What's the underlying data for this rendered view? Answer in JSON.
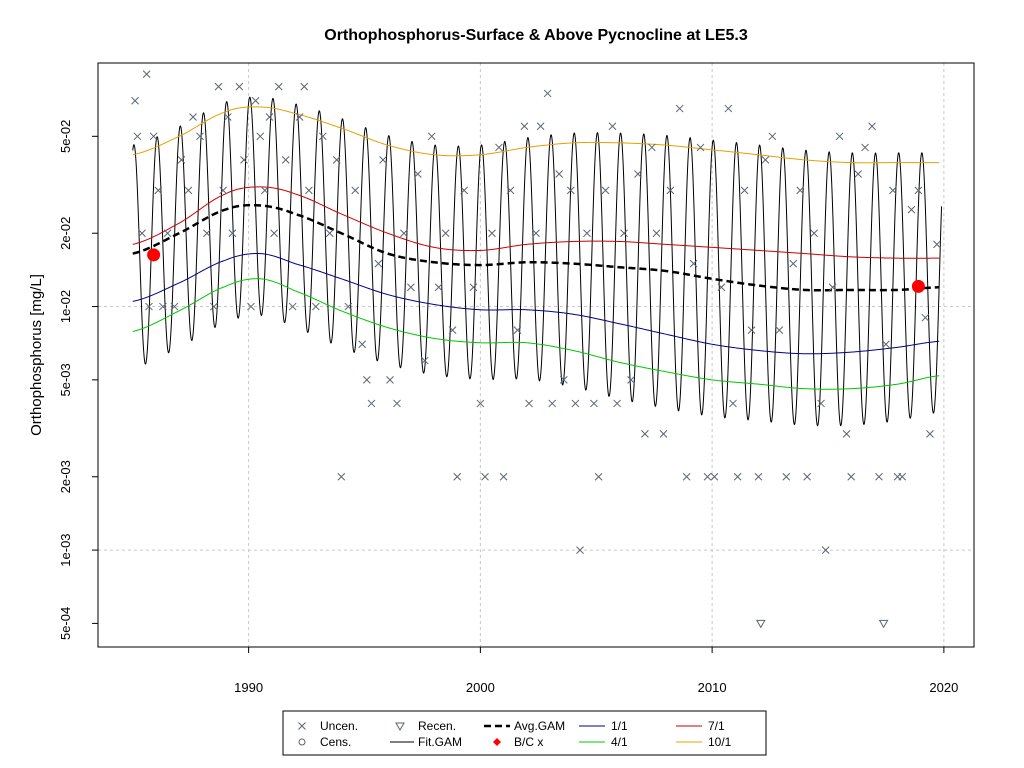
{
  "chart_data": {
    "type": "line",
    "title": "Orthophosphorus-Surface & Above Pycnocline at LE5.3",
    "ylabel": "Orthophosphorus [mg/L]",
    "xlabel": "",
    "y_scale": "log",
    "xlim": [
      1983.5,
      2021.3
    ],
    "ylim": [
      0.0004,
      0.1
    ],
    "grid": true,
    "x_ticks": [
      1990,
      2000,
      2010,
      2020
    ],
    "x_tick_labels": [
      "1990",
      "2000",
      "2010",
      "2020"
    ],
    "y_ticks": [
      0.0005,
      0.001,
      0.002,
      0.005,
      0.01,
      0.02,
      0.05
    ],
    "y_tick_labels": [
      "5e-04",
      "1e-03",
      "2e-03",
      "5e-03",
      "1e-02",
      "2e-02",
      "5e-02"
    ],
    "x_grid": [
      1990,
      2000,
      2010,
      2020
    ],
    "y_grid": [
      0.001,
      0.01
    ],
    "colors": {
      "uncensored": "#5a6473",
      "fit_gam": "#000000",
      "avg_gam": "#000000",
      "bc": "#ff0000",
      "jan": "#00008b",
      "apr": "#00c800",
      "jul": "#cc0000",
      "oct": "#e6a000",
      "grid": "#c8c8c8"
    },
    "fit_gam": {
      "name": "Fit.GAM",
      "x_start": 1985.0,
      "x_end": 2019.9,
      "phase_peak": 0.05,
      "phase_trough": 0.45
    },
    "series": [
      {
        "key": "oct",
        "name": "10/1",
        "x": [
          1985,
          1987,
          1989,
          1990.5,
          1992,
          1994,
          1996,
          1998,
          2000,
          2002,
          2004,
          2006,
          2008,
          2010,
          2012,
          2014,
          2016,
          2018,
          2019.8
        ],
        "values": [
          0.042,
          0.05,
          0.063,
          0.066,
          0.062,
          0.054,
          0.046,
          0.042,
          0.042,
          0.045,
          0.047,
          0.047,
          0.046,
          0.044,
          0.042,
          0.04,
          0.039,
          0.039,
          0.039
        ]
      },
      {
        "key": "jul",
        "name": "7/1",
        "x": [
          1985,
          1987,
          1989,
          1990.5,
          1992,
          1994,
          1996,
          1998,
          2000,
          2002,
          2004,
          2006,
          2008,
          2010,
          2012,
          2014,
          2016,
          2018,
          2019.8
        ],
        "values": [
          0.018,
          0.022,
          0.029,
          0.031,
          0.029,
          0.024,
          0.02,
          0.0175,
          0.017,
          0.018,
          0.0185,
          0.0185,
          0.018,
          0.0175,
          0.017,
          0.0165,
          0.016,
          0.0158,
          0.0158
        ]
      },
      {
        "key": "jan",
        "name": "1/1",
        "x": [
          1985,
          1987,
          1989,
          1990.5,
          1992,
          1994,
          1996,
          1998,
          2000,
          2002,
          2004,
          2006,
          2008,
          2010,
          2012,
          2014,
          2016,
          2018,
          2019.8
        ],
        "values": [
          0.0105,
          0.0125,
          0.0155,
          0.0165,
          0.015,
          0.013,
          0.0112,
          0.0102,
          0.0097,
          0.0097,
          0.0093,
          0.0085,
          0.0077,
          0.007,
          0.0066,
          0.0064,
          0.0065,
          0.0068,
          0.0072
        ]
      },
      {
        "key": "apr",
        "name": "4/1",
        "x": [
          1985,
          1987,
          1989,
          1990.5,
          1992,
          1994,
          1996,
          1998,
          2000,
          2002,
          2004,
          2006,
          2008,
          2010,
          2012,
          2014,
          2016,
          2018,
          2019.8
        ],
        "values": [
          0.0079,
          0.0096,
          0.0121,
          0.013,
          0.0116,
          0.0096,
          0.0082,
          0.0074,
          0.0071,
          0.0071,
          0.0066,
          0.0059,
          0.0054,
          0.005,
          0.0048,
          0.0046,
          0.0046,
          0.0048,
          0.0052
        ]
      },
      {
        "key": "avg",
        "name": "Avg.GAM",
        "x": [
          1985,
          1987,
          1989,
          1990.5,
          1992,
          1994,
          1996,
          1998,
          2000,
          2002,
          2004,
          2006,
          2008,
          2010,
          2012,
          2014,
          2016,
          2018,
          2019.8
        ],
        "values": [
          0.0165,
          0.02,
          0.025,
          0.026,
          0.024,
          0.02,
          0.0165,
          0.0152,
          0.0148,
          0.0152,
          0.015,
          0.0145,
          0.014,
          0.013,
          0.0122,
          0.0117,
          0.0117,
          0.0117,
          0.012
        ]
      }
    ],
    "bc_points": {
      "name": "B/C x",
      "points": [
        {
          "x": 1985.9,
          "y": 0.0163
        },
        {
          "x": 2018.9,
          "y": 0.0121
        }
      ]
    },
    "uncensored": {
      "name": "Uncen.",
      "points": [
        {
          "x": 1985.1,
          "y": 0.07
        },
        {
          "x": 1985.2,
          "y": 0.05
        },
        {
          "x": 1985.4,
          "y": 0.02
        },
        {
          "x": 1985.6,
          "y": 0.09
        },
        {
          "x": 1985.7,
          "y": 0.01
        },
        {
          "x": 1985.9,
          "y": 0.05
        },
        {
          "x": 1986.1,
          "y": 0.03
        },
        {
          "x": 1986.3,
          "y": 0.01
        },
        {
          "x": 1986.5,
          "y": 0.02
        },
        {
          "x": 1986.8,
          "y": 0.01
        },
        {
          "x": 1987.1,
          "y": 0.04
        },
        {
          "x": 1987.4,
          "y": 0.03
        },
        {
          "x": 1987.6,
          "y": 0.06
        },
        {
          "x": 1987.9,
          "y": 0.05
        },
        {
          "x": 1988.2,
          "y": 0.02
        },
        {
          "x": 1988.5,
          "y": 0.01
        },
        {
          "x": 1988.7,
          "y": 0.08
        },
        {
          "x": 1988.9,
          "y": 0.03
        },
        {
          "x": 1989.1,
          "y": 0.06
        },
        {
          "x": 1989.3,
          "y": 0.02
        },
        {
          "x": 1989.6,
          "y": 0.08
        },
        {
          "x": 1989.8,
          "y": 0.04
        },
        {
          "x": 1990.1,
          "y": 0.01
        },
        {
          "x": 1990.3,
          "y": 0.07
        },
        {
          "x": 1990.5,
          "y": 0.05
        },
        {
          "x": 1990.7,
          "y": 0.03
        },
        {
          "x": 1990.9,
          "y": 0.06
        },
        {
          "x": 1991.1,
          "y": 0.02
        },
        {
          "x": 1991.3,
          "y": 0.08
        },
        {
          "x": 1991.6,
          "y": 0.04
        },
        {
          "x": 1991.9,
          "y": 0.01
        },
        {
          "x": 1992.2,
          "y": 0.06
        },
        {
          "x": 1992.4,
          "y": 0.08
        },
        {
          "x": 1992.6,
          "y": 0.03
        },
        {
          "x": 1992.9,
          "y": 0.01
        },
        {
          "x": 1993.2,
          "y": 0.05
        },
        {
          "x": 1993.5,
          "y": 0.02
        },
        {
          "x": 1993.8,
          "y": 0.04
        },
        {
          "x": 1994.0,
          "y": 0.002
        },
        {
          "x": 1994.3,
          "y": 0.01
        },
        {
          "x": 1994.6,
          "y": 0.03
        },
        {
          "x": 1994.9,
          "y": 0.007
        },
        {
          "x": 1995.1,
          "y": 0.005
        },
        {
          "x": 1995.3,
          "y": 0.004
        },
        {
          "x": 1995.6,
          "y": 0.015
        },
        {
          "x": 1995.8,
          "y": 0.04
        },
        {
          "x": 1996.1,
          "y": 0.005
        },
        {
          "x": 1996.4,
          "y": 0.004
        },
        {
          "x": 1996.7,
          "y": 0.02
        },
        {
          "x": 1997.0,
          "y": 0.012
        },
        {
          "x": 1997.3,
          "y": 0.035
        },
        {
          "x": 1997.6,
          "y": 0.006
        },
        {
          "x": 1997.9,
          "y": 0.05
        },
        {
          "x": 1998.2,
          "y": 0.012
        },
        {
          "x": 1998.5,
          "y": 0.02
        },
        {
          "x": 1998.8,
          "y": 0.008
        },
        {
          "x": 1999.0,
          "y": 0.002
        },
        {
          "x": 1999.3,
          "y": 0.03
        },
        {
          "x": 1999.7,
          "y": 0.012
        },
        {
          "x": 2000.0,
          "y": 0.004
        },
        {
          "x": 2000.2,
          "y": 0.002
        },
        {
          "x": 2000.5,
          "y": 0.02
        },
        {
          "x": 2000.8,
          "y": 0.045
        },
        {
          "x": 2001.0,
          "y": 0.002
        },
        {
          "x": 2001.3,
          "y": 0.03
        },
        {
          "x": 2001.6,
          "y": 0.008
        },
        {
          "x": 2001.9,
          "y": 0.055
        },
        {
          "x": 2002.1,
          "y": 0.004
        },
        {
          "x": 2002.4,
          "y": 0.02
        },
        {
          "x": 2002.6,
          "y": 0.055
        },
        {
          "x": 2002.9,
          "y": 0.075
        },
        {
          "x": 2003.1,
          "y": 0.004
        },
        {
          "x": 2003.4,
          "y": 0.035
        },
        {
          "x": 2003.6,
          "y": 0.005
        },
        {
          "x": 2003.9,
          "y": 0.03
        },
        {
          "x": 2004.1,
          "y": 0.004
        },
        {
          "x": 2004.3,
          "y": 0.001
        },
        {
          "x": 2004.6,
          "y": 0.02
        },
        {
          "x": 2004.9,
          "y": 0.004
        },
        {
          "x": 2005.1,
          "y": 0.002
        },
        {
          "x": 2005.4,
          "y": 0.03
        },
        {
          "x": 2005.7,
          "y": 0.055
        },
        {
          "x": 2005.9,
          "y": 0.004
        },
        {
          "x": 2006.2,
          "y": 0.02
        },
        {
          "x": 2006.5,
          "y": 0.005
        },
        {
          "x": 2006.8,
          "y": 0.035
        },
        {
          "x": 2007.1,
          "y": 0.003
        },
        {
          "x": 2007.4,
          "y": 0.045
        },
        {
          "x": 2007.6,
          "y": 0.02
        },
        {
          "x": 2007.9,
          "y": 0.003
        },
        {
          "x": 2008.2,
          "y": 0.03
        },
        {
          "x": 2008.6,
          "y": 0.065
        },
        {
          "x": 2008.9,
          "y": 0.002
        },
        {
          "x": 2009.2,
          "y": 0.015
        },
        {
          "x": 2009.5,
          "y": 0.045
        },
        {
          "x": 2009.8,
          "y": 0.002
        },
        {
          "x": 2010.1,
          "y": 0.002
        },
        {
          "x": 2010.4,
          "y": 0.012
        },
        {
          "x": 2010.7,
          "y": 0.065
        },
        {
          "x": 2010.9,
          "y": 0.004
        },
        {
          "x": 2011.1,
          "y": 0.002
        },
        {
          "x": 2011.4,
          "y": 0.03
        },
        {
          "x": 2011.7,
          "y": 0.008
        },
        {
          "x": 2012.0,
          "y": 0.002
        },
        {
          "x": 2012.3,
          "y": 0.04
        },
        {
          "x": 2012.6,
          "y": 0.05
        },
        {
          "x": 2012.9,
          "y": 0.008
        },
        {
          "x": 2013.2,
          "y": 0.002
        },
        {
          "x": 2013.5,
          "y": 0.015
        },
        {
          "x": 2013.8,
          "y": 0.03
        },
        {
          "x": 2014.1,
          "y": 0.002
        },
        {
          "x": 2014.4,
          "y": 0.02
        },
        {
          "x": 2014.7,
          "y": 0.004
        },
        {
          "x": 2014.9,
          "y": 0.001
        },
        {
          "x": 2015.2,
          "y": 0.012
        },
        {
          "x": 2015.5,
          "y": 0.05
        },
        {
          "x": 2015.8,
          "y": 0.003
        },
        {
          "x": 2016.0,
          "y": 0.002
        },
        {
          "x": 2016.3,
          "y": 0.035
        },
        {
          "x": 2016.6,
          "y": 0.045
        },
        {
          "x": 2016.9,
          "y": 0.055
        },
        {
          "x": 2017.2,
          "y": 0.002
        },
        {
          "x": 2017.5,
          "y": 0.007
        },
        {
          "x": 2017.8,
          "y": 0.03
        },
        {
          "x": 2018.0,
          "y": 0.002
        },
        {
          "x": 2018.2,
          "y": 0.002
        },
        {
          "x": 2018.6,
          "y": 0.025
        },
        {
          "x": 2018.9,
          "y": 0.03
        },
        {
          "x": 2019.2,
          "y": 0.009
        },
        {
          "x": 2019.4,
          "y": 0.003
        },
        {
          "x": 2019.7,
          "y": 0.018
        }
      ]
    },
    "censored": {
      "name": "Recen.",
      "points": [
        {
          "x": 2012.1,
          "y": 0.0005
        },
        {
          "x": 2017.4,
          "y": 0.0005
        }
      ]
    },
    "legend": {
      "placement": "bottom-center",
      "entries": [
        {
          "key": "uncen",
          "label": "Uncen."
        },
        {
          "key": "cens",
          "label": "Cens."
        },
        {
          "key": "recen",
          "label": "Recen."
        },
        {
          "key": "fitgam",
          "label": "Fit.GAM"
        },
        {
          "key": "avggam",
          "label": "Avg.GAM"
        },
        {
          "key": "bc",
          "label": "B/C x"
        },
        {
          "key": "jan",
          "label": "1/1"
        },
        {
          "key": "apr",
          "label": "4/1"
        },
        {
          "key": "jul",
          "label": "7/1"
        },
        {
          "key": "oct",
          "label": "10/1"
        }
      ]
    }
  }
}
